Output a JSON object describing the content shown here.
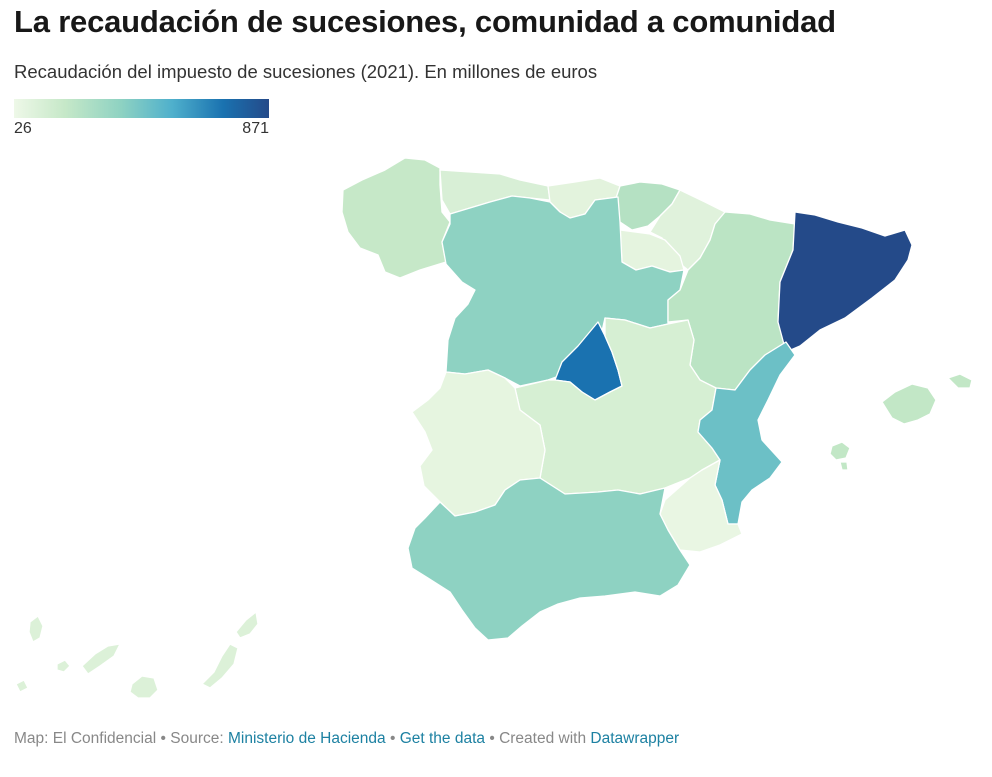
{
  "header": {
    "title": "La recaudación de sucesiones, comunidad a comunidad",
    "subtitle": "Recaudación del impuesto de sucesiones (2021). En millones de euros"
  },
  "legend": {
    "min": "26",
    "max": "871",
    "colors": [
      "#eef8e8",
      "#c6e8c8",
      "#8ed2c2",
      "#4fb0cc",
      "#1a72b0",
      "#244a89"
    ]
  },
  "map": {
    "regions": [
      {
        "name": "Galicia",
        "fill": "#c6e8c8"
      },
      {
        "name": "Asturias",
        "fill": "#d8efd6"
      },
      {
        "name": "Cantabria",
        "fill": "#e3f3dd"
      },
      {
        "name": "País Vasco",
        "fill": "#b5e1c3"
      },
      {
        "name": "Navarra",
        "fill": "#e0f2dc"
      },
      {
        "name": "La Rioja",
        "fill": "#e5f4df"
      },
      {
        "name": "Castilla y León",
        "fill": "#8ed2c2"
      },
      {
        "name": "Aragón",
        "fill": "#bbe4c4"
      },
      {
        "name": "Cataluña",
        "fill": "#244a89"
      },
      {
        "name": "Madrid",
        "fill": "#1a72b0"
      },
      {
        "name": "Castilla-La Mancha",
        "fill": "#d6efd3"
      },
      {
        "name": "Extremadura",
        "fill": "#e6f5e0"
      },
      {
        "name": "Comunidad Valenciana",
        "fill": "#6cc0c6"
      },
      {
        "name": "Murcia",
        "fill": "#e9f6e3"
      },
      {
        "name": "Andalucía",
        "fill": "#8ed2c2"
      },
      {
        "name": "Islas Baleares",
        "fill": "#c2e7c6"
      },
      {
        "name": "Canarias",
        "fill": "#dcf1d8"
      }
    ]
  },
  "footer": {
    "map_credit": "Map: El Confidencial",
    "source_label": "Source:",
    "source_link": "Ministerio de Hacienda",
    "get_data": "Get the data",
    "created_with": "Created with",
    "datawrapper": "Datawrapper"
  }
}
